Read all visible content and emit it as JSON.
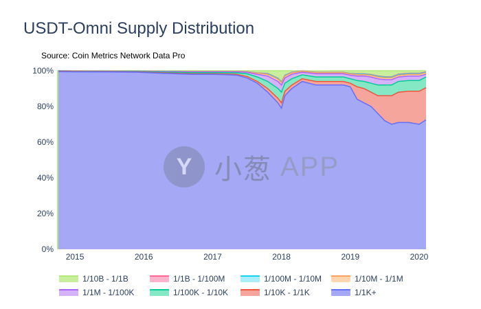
{
  "title": "USDT-Omni Supply Distribution",
  "source": "Source: Coin Metrics Network Data Pro",
  "watermark": {
    "logo_glyph": "Y",
    "text": "小葱",
    "app": "APP"
  },
  "chart_data": {
    "type": "area",
    "stacked": true,
    "x": [
      2014.75,
      2015.0,
      2015.5,
      2015.9,
      2016.3,
      2016.7,
      2017.0,
      2017.2,
      2017.35,
      2017.5,
      2017.65,
      2017.8,
      2017.95,
      2018.0,
      2018.05,
      2018.15,
      2018.3,
      2018.5,
      2018.7,
      2018.9,
      2019.0,
      2019.1,
      2019.2,
      2019.3,
      2019.4,
      2019.5,
      2019.6,
      2019.7,
      2019.85,
      2020.0,
      2020.1
    ],
    "xticks": [
      "2015",
      "2016",
      "2017",
      "2018",
      "2019",
      "2020"
    ],
    "xlim": [
      2014.75,
      2020.1
    ],
    "yticks": [
      "0%",
      "20%",
      "40%",
      "60%",
      "80%",
      "100%"
    ],
    "ylim": [
      0,
      100
    ],
    "series": [
      {
        "name": "1/1K+",
        "color": "#a5a9f5",
        "line": "#636efa",
        "values": [
          99.5,
          99.4,
          99.3,
          99.2,
          98.5,
          98.0,
          98.0,
          97.8,
          97.5,
          96.0,
          93.0,
          88.0,
          82.0,
          79.0,
          86.0,
          90.0,
          94.0,
          92.0,
          92.0,
          92.0,
          91.0,
          84.0,
          82.0,
          80.0,
          76.0,
          72.0,
          70.0,
          71.0,
          71.0,
          70.0,
          72.5
        ]
      },
      {
        "name": "1/10K - 1/1K",
        "color": "#f5a59c",
        "line": "#ef553b",
        "values": [
          0.2,
          0.2,
          0.2,
          0.2,
          0.3,
          0.3,
          0.3,
          0.4,
          0.5,
          0.8,
          1.0,
          2.0,
          2.5,
          3.0,
          2.5,
          2.0,
          1.5,
          2.0,
          2.0,
          2.0,
          2.0,
          7.0,
          8.0,
          8.0,
          10.0,
          14.0,
          16.0,
          17.0,
          17.5,
          18.5,
          18.0
        ]
      },
      {
        "name": "1/100K - 1/10K",
        "color": "#85e8c4",
        "line": "#00cc96",
        "values": [
          0.1,
          0.1,
          0.1,
          0.2,
          0.4,
          0.6,
          0.6,
          0.7,
          0.8,
          1.5,
          2.5,
          4.0,
          5.5,
          6.0,
          4.5,
          3.5,
          2.2,
          2.5,
          2.5,
          2.5,
          2.5,
          3.5,
          4.0,
          5.0,
          6.0,
          6.0,
          6.0,
          6.0,
          6.0,
          6.0,
          6.0
        ]
      },
      {
        "name": "1/1M - 1/100K",
        "color": "#d6b2fb",
        "line": "#ab63fa",
        "values": [
          0.1,
          0.1,
          0.1,
          0.1,
          0.3,
          0.5,
          0.5,
          0.5,
          0.6,
          0.8,
          1.5,
          3.0,
          4.0,
          4.0,
          3.0,
          2.5,
          1.5,
          1.8,
          1.8,
          1.8,
          2.0,
          2.5,
          3.0,
          3.5,
          3.5,
          3.0,
          3.0,
          2.5,
          2.5,
          2.5,
          1.5
        ]
      },
      {
        "name": "1/10M - 1/1M",
        "color": "#ffd6b0",
        "line": "#ffa15a",
        "values": [
          0.03,
          0.05,
          0.05,
          0.05,
          0.1,
          0.2,
          0.2,
          0.2,
          0.2,
          0.3,
          0.6,
          1.0,
          1.3,
          1.3,
          1.0,
          0.8,
          0.5,
          0.6,
          0.6,
          0.6,
          0.7,
          0.8,
          0.8,
          0.9,
          1.0,
          1.0,
          1.0,
          1.0,
          1.0,
          1.0,
          0.8
        ]
      },
      {
        "name": "1/100M - 1/10M",
        "color": "#a9eef8",
        "line": "#19d3f3",
        "values": [
          0.02,
          0.02,
          0.02,
          0.02,
          0.05,
          0.05,
          0.05,
          0.05,
          0.05,
          0.05,
          0.1,
          0.3,
          0.4,
          0.4,
          0.3,
          0.2,
          0.1,
          0.1,
          0.1,
          0.1,
          0.2,
          0.3,
          0.3,
          0.3,
          0.4,
          0.4,
          0.4,
          0.4,
          0.4,
          0.4,
          0.3
        ]
      },
      {
        "name": "1/1B - 1/100M",
        "color": "#ffb3cc",
        "line": "#ff6692",
        "values": [
          0.02,
          0.02,
          0.02,
          0.02,
          0.05,
          0.05,
          0.05,
          0.05,
          0.05,
          0.05,
          0.1,
          0.2,
          0.2,
          0.2,
          0.2,
          0.2,
          0.1,
          0.1,
          0.1,
          0.1,
          0.1,
          0.2,
          0.2,
          0.2,
          0.2,
          0.2,
          0.2,
          0.2,
          0.2,
          0.2,
          0.2
        ]
      },
      {
        "name": "1/10B - 1/1B",
        "color": "#c8ef9b",
        "line": "#b6e880",
        "values": [
          0.03,
          0.13,
          0.21,
          0.21,
          0.3,
          0.3,
          0.3,
          0.3,
          0.3,
          0.5,
          1.2,
          1.5,
          4.1,
          6.1,
          2.5,
          0.8,
          0.1,
          0.8,
          0.9,
          0.9,
          1.5,
          1.7,
          1.7,
          2.1,
          2.9,
          3.4,
          3.4,
          1.9,
          1.4,
          1.4,
          0.7
        ]
      }
    ],
    "legend_order": [
      "1/10B - 1/1B",
      "1/1B - 1/100M",
      "1/100M - 1/10M",
      "1/10M - 1/1M",
      "1/1M - 1/100K",
      "1/100K - 1/10K",
      "1/10K - 1/1K",
      "1/1K+"
    ],
    "grid": false,
    "legend_position": "bottom"
  }
}
